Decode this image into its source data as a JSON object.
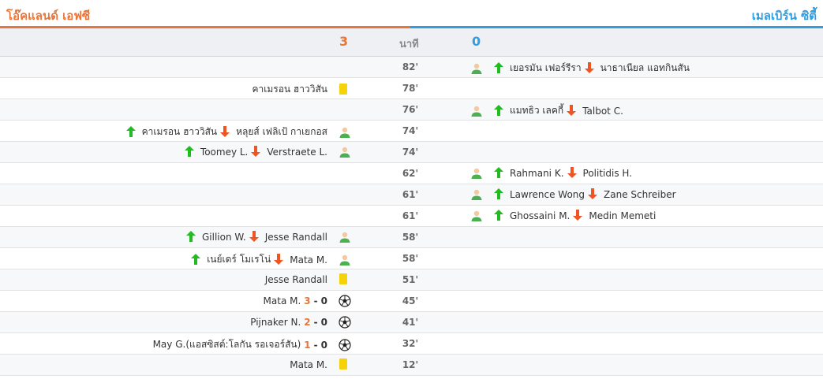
{
  "header": {
    "home_team": "โอ๊คแลนด์ เอฟซี",
    "away_team": "เมลเบิร์น ซิตี้",
    "home_score": "3",
    "away_score": "0",
    "minute_label": "นาที"
  },
  "colors": {
    "home": "#e8763a",
    "away": "#2f9ee0",
    "sub_in": "#22bb22",
    "sub_out": "#ee5522",
    "yellow": "#f5d20a"
  },
  "events": [
    {
      "minute": "82'",
      "side": "away",
      "type": "substitution",
      "in": "เยอรมัน เฟอร์รีรา",
      "out": "นาธาเนียล แอทกินสัน"
    },
    {
      "minute": "78'",
      "side": "home",
      "type": "yellow-card",
      "player": "คาเมรอน ฮาววิสัน"
    },
    {
      "minute": "76'",
      "side": "away",
      "type": "substitution",
      "in": "แมทธิว เลคกี้",
      "out": "Talbot C."
    },
    {
      "minute": "74'",
      "side": "home",
      "type": "substitution",
      "in": "คาเมรอน ฮาววิสัน",
      "out": "หลุยส์ เฟลิเป้ กาเยกอส"
    },
    {
      "minute": "74'",
      "side": "home",
      "type": "substitution",
      "in": "Toomey L.",
      "out": "Verstraete L."
    },
    {
      "minute": "62'",
      "side": "away",
      "type": "substitution",
      "in": "Rahmani K.",
      "out": "Politidis H."
    },
    {
      "minute": "61'",
      "side": "away",
      "type": "substitution",
      "in": "Lawrence Wong",
      "out": "Zane Schreiber"
    },
    {
      "minute": "61'",
      "side": "away",
      "type": "substitution",
      "in": "Ghossaini M.",
      "out": "Medin Memeti"
    },
    {
      "minute": "58'",
      "side": "home",
      "type": "substitution",
      "in": "Gillion W.",
      "out": "Jesse Randall"
    },
    {
      "minute": "58'",
      "side": "home",
      "type": "substitution",
      "in": "เนย์เดร์ โมเรโน่",
      "out": "Mata M."
    },
    {
      "minute": "51'",
      "side": "home",
      "type": "yellow-card",
      "player": "Jesse Randall"
    },
    {
      "minute": "45'",
      "side": "home",
      "type": "goal",
      "player": "Mata M.",
      "home": "3",
      "sep": "-",
      "away": "0"
    },
    {
      "minute": "41'",
      "side": "home",
      "type": "goal",
      "player": "Pijnaker N.",
      "home": "2",
      "sep": "-",
      "away": "0"
    },
    {
      "minute": "32'",
      "side": "home",
      "type": "goal",
      "player": "May G.(แอสซิสต์:โลกัน รอเจอร์สัน)",
      "home": "1",
      "sep": "-",
      "away": "0"
    },
    {
      "minute": "12'",
      "side": "home",
      "type": "yellow-card",
      "player": "Mata M."
    }
  ]
}
